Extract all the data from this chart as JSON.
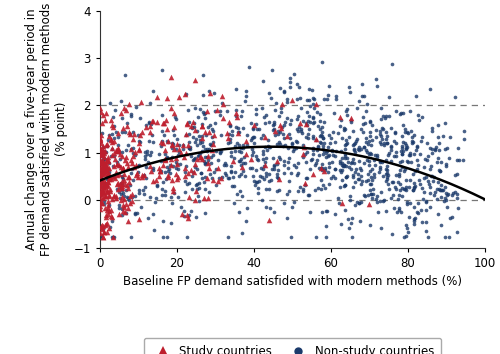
{
  "xlabel": "Baseline FP demand satisfided with modern methods (%)",
  "ylabel": "Annual change over a five-year period in\nFP demand satisfied with modern methods\n(% point)",
  "xlim": [
    0,
    100
  ],
  "ylim": [
    -1.0,
    4.0
  ],
  "yticks": [
    -1,
    0,
    1,
    2,
    3,
    4
  ],
  "xticks": [
    0,
    20,
    40,
    60,
    80,
    100
  ],
  "hlines": [
    0,
    2
  ],
  "study_color": "#BE1E2D",
  "nonstudy_color": "#1B3A6B",
  "fit_color": "#000000",
  "quad_coeffs": [
    0.42,
    0.032,
    -0.00036
  ],
  "seed": 99,
  "n_study": 400,
  "n_nonstudy": 1120,
  "noise_study": 0.6,
  "noise_nonstudy": 0.68
}
